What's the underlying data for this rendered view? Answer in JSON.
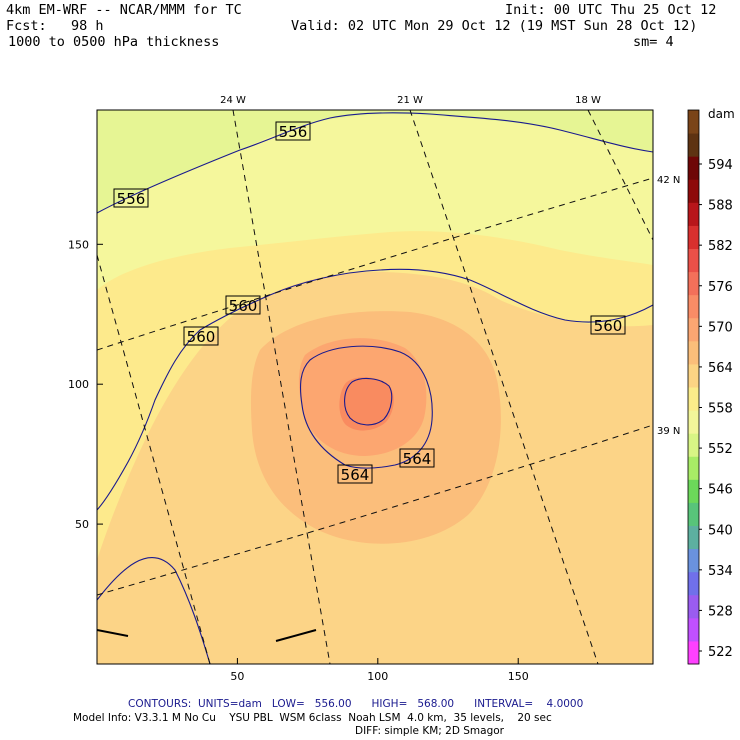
{
  "header": {
    "model": "4km EM-WRF -- NCAR/MMM for TC",
    "init": "Init: 00 UTC Thu 25 Oct 12",
    "fcst": "Fcst:   98 h",
    "valid": "Valid: 02 UTC Mon 29 Oct 12 (19 MST Sun 28 Oct 12)",
    "field": "1000 to 0500 hPa thickness",
    "smoothing": "sm= 4"
  },
  "footer": {
    "contours": "CONTOURS:  UNITS=dam   LOW=   556.00      HIGH=   568.00      INTERVAL=    4.0000",
    "model_info": "Model Info: V3.3.1 M No Cu    YSU PBL  WSM 6class  Noah LSM  4.0 km,  35 levels,    20 sec",
    "diff": "DIFF: simple KM; 2D Smagor"
  },
  "chart_data": {
    "type": "heatmap",
    "x_ticks": [
      50,
      100,
      150
    ],
    "y_ticks": [
      50,
      100,
      150
    ],
    "xlim": [
      0,
      198
    ],
    "ylim": [
      0,
      198
    ],
    "lon_labels": [
      "24 W",
      "21 W",
      "18 W"
    ],
    "lat_labels": [
      "42 N",
      "39 N"
    ],
    "colorbar": {
      "unit": "dam",
      "levels": [
        522,
        528,
        534,
        540,
        546,
        552,
        558,
        564,
        570,
        576,
        582,
        588,
        594
      ],
      "labels": [
        "594",
        "588",
        "582",
        "576",
        "570",
        "564",
        "558",
        "552",
        "546",
        "540",
        "534",
        "528",
        "522"
      ],
      "colors_bottom_to_top": [
        "#ff40ff",
        "#c050ff",
        "#9a5cf0",
        "#7070ea",
        "#6a92de",
        "#5db0a0",
        "#58c47a",
        "#6cd85a",
        "#a8ec66",
        "#d8f585",
        "#f2f69a",
        "#fbec8a",
        "#fcd484",
        "#fbbe7a",
        "#fba672",
        "#f98c66",
        "#f3705a",
        "#ea5048",
        "#d8302e",
        "#b8161a",
        "#8e0a0a",
        "#6e0606",
        "#5e3312",
        "#7a4418"
      ]
    },
    "fill_colors": {
      "c552": "#e6f594",
      "c556": "#f5f79c",
      "c558": "#fdea8c",
      "c562": "#fcd487",
      "c564": "#fbbe7b",
      "c566": "#fca670",
      "c568": "#f98b60"
    },
    "contour_labels": [
      {
        "text": "556",
        "value": 556
      },
      {
        "text": "556",
        "value": 556
      },
      {
        "text": "560",
        "value": 560
      },
      {
        "text": "560",
        "value": 560
      },
      {
        "text": "560",
        "value": 560
      },
      {
        "text": "564",
        "value": 564
      },
      {
        "text": "564",
        "value": 564
      }
    ]
  }
}
